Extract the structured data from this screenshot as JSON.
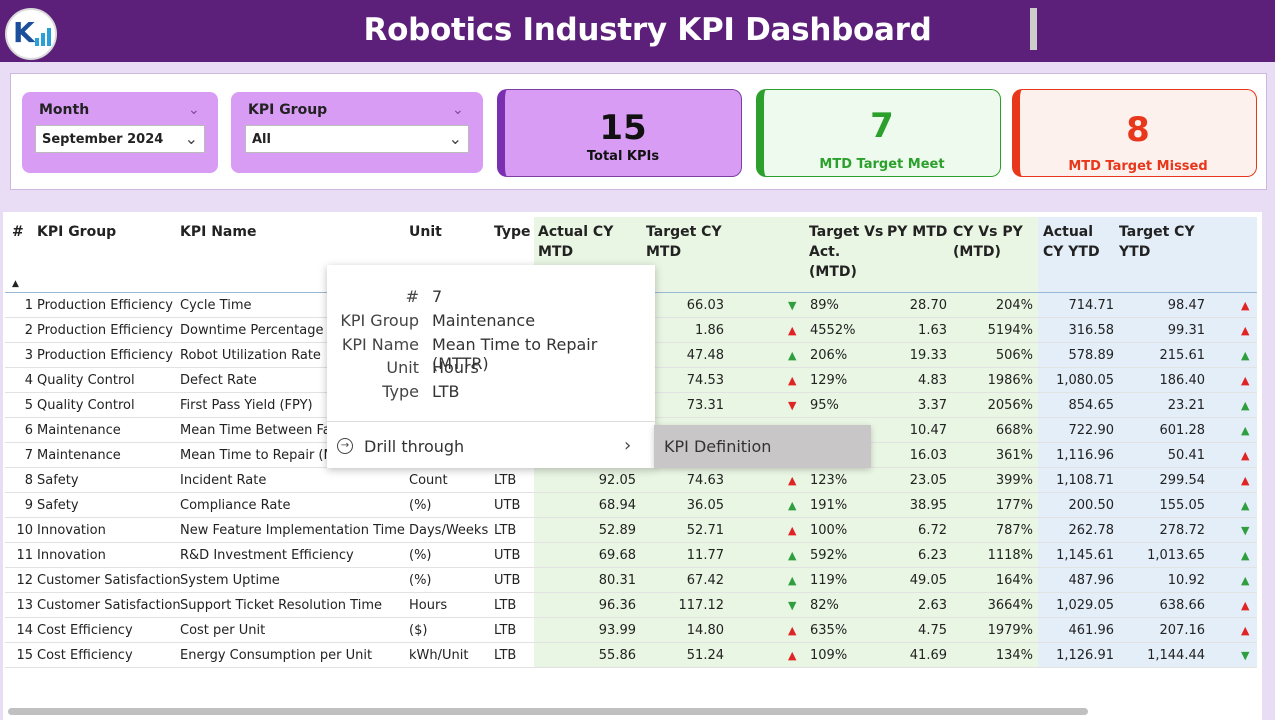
{
  "header": {
    "title": "Robotics Industry KPI Dashboard",
    "logo_icon": "kpi-logo-icon"
  },
  "slicers": {
    "month": {
      "label": "Month",
      "value": "September 2024"
    },
    "kpi_group": {
      "label": "KPI Group",
      "value": "All"
    }
  },
  "cards": {
    "total": {
      "value": "15",
      "label": "Total KPIs",
      "color": "#5c1f7a"
    },
    "met": {
      "value": "7",
      "label": "MTD Target Meet",
      "color": "#2ca02c"
    },
    "missed": {
      "value": "8",
      "label": "MTD Target Missed",
      "color": "#e8371a"
    }
  },
  "table": {
    "headers": {
      "num": "#",
      "group": "KPI Group",
      "name": "KPI Name",
      "unit": "Unit",
      "type": "Type",
      "actual_mtd": "Actual CY MTD",
      "target_mtd": "Target CY MTD",
      "tva": "Target Vs Act. (MTD)",
      "py_mtd": "PY MTD",
      "cy_vs_py": "CY Vs PY (MTD)",
      "actual_ytd": "Actual CY YTD",
      "target_ytd": "Target CY YTD"
    },
    "rows": [
      {
        "n": "1",
        "group": "Production Efficiency",
        "name": "Cycle Time",
        "unit": "",
        "type": "",
        "amtd": "",
        "tmtd": "66.03",
        "ind1": "down-green",
        "tva": "89%",
        "py": "28.70",
        "cvp": "204%",
        "aytd": "714.71",
        "tytd": "98.47",
        "ind2": "up-red"
      },
      {
        "n": "2",
        "group": "Production Efficiency",
        "name": "Downtime Percentage",
        "unit": "",
        "type": "",
        "amtd": "",
        "tmtd": "1.86",
        "ind1": "up-red",
        "tva": "4552%",
        "py": "1.63",
        "cvp": "5194%",
        "aytd": "316.58",
        "tytd": "99.31",
        "ind2": "up-red"
      },
      {
        "n": "3",
        "group": "Production Efficiency",
        "name": "Robot Utilization Rate",
        "unit": "",
        "type": "",
        "amtd": "",
        "tmtd": "47.48",
        "ind1": "up-green",
        "tva": "206%",
        "py": "19.33",
        "cvp": "506%",
        "aytd": "578.89",
        "tytd": "215.61",
        "ind2": "up-green"
      },
      {
        "n": "4",
        "group": "Quality Control",
        "name": "Defect Rate",
        "unit": "",
        "type": "",
        "amtd": "",
        "tmtd": "74.53",
        "ind1": "up-red",
        "tva": "129%",
        "py": "4.83",
        "cvp": "1986%",
        "aytd": "1,080.05",
        "tytd": "186.40",
        "ind2": "up-red"
      },
      {
        "n": "5",
        "group": "Quality Control",
        "name": "First Pass Yield (FPY)",
        "unit": "",
        "type": "",
        "amtd": "",
        "tmtd": "73.31",
        "ind1": "down-red",
        "tva": "95%",
        "py": "3.37",
        "cvp": "2056%",
        "aytd": "854.65",
        "tytd": "23.21",
        "ind2": "up-green"
      },
      {
        "n": "6",
        "group": "Maintenance",
        "name": "Mean Time Between Fail",
        "unit": "",
        "type": "",
        "amtd": "",
        "tmtd": "",
        "ind1": "",
        "tva": "",
        "py": "10.47",
        "cvp": "668%",
        "aytd": "722.90",
        "tytd": "601.28",
        "ind2": "up-green"
      },
      {
        "n": "7",
        "group": "Maintenance",
        "name": "Mean Time to Repair (M",
        "unit": "",
        "type": "",
        "amtd": "",
        "tmtd": "",
        "ind1": "",
        "tva": "",
        "py": "16.03",
        "cvp": "361%",
        "aytd": "1,116.96",
        "tytd": "50.41",
        "ind2": "up-red"
      },
      {
        "n": "8",
        "group": "Safety",
        "name": "Incident Rate",
        "unit": "Count",
        "type": "LTB",
        "amtd": "92.05",
        "tmtd": "74.63",
        "ind1": "up-red",
        "tva": "123%",
        "py": "23.05",
        "cvp": "399%",
        "aytd": "1,108.71",
        "tytd": "299.54",
        "ind2": "up-red"
      },
      {
        "n": "9",
        "group": "Safety",
        "name": "Compliance Rate",
        "unit": "(%)",
        "type": "UTB",
        "amtd": "68.94",
        "tmtd": "36.05",
        "ind1": "up-green",
        "tva": "191%",
        "py": "38.95",
        "cvp": "177%",
        "aytd": "200.50",
        "tytd": "155.05",
        "ind2": "up-green"
      },
      {
        "n": "10",
        "group": "Innovation",
        "name": "New Feature Implementation Time",
        "unit": "Days/Weeks",
        "type": "LTB",
        "amtd": "52.89",
        "tmtd": "52.71",
        "ind1": "up-red",
        "tva": "100%",
        "py": "6.72",
        "cvp": "787%",
        "aytd": "262.78",
        "tytd": "278.72",
        "ind2": "down-green"
      },
      {
        "n": "11",
        "group": "Innovation",
        "name": "R&D Investment Efficiency",
        "unit": "(%)",
        "type": "UTB",
        "amtd": "69.68",
        "tmtd": "11.77",
        "ind1": "up-green",
        "tva": "592%",
        "py": "6.23",
        "cvp": "1118%",
        "aytd": "1,145.61",
        "tytd": "1,013.65",
        "ind2": "up-green"
      },
      {
        "n": "12",
        "group": "Customer Satisfaction",
        "name": "System Uptime",
        "unit": "(%)",
        "type": "UTB",
        "amtd": "80.31",
        "tmtd": "67.42",
        "ind1": "up-green",
        "tva": "119%",
        "py": "49.05",
        "cvp": "164%",
        "aytd": "487.96",
        "tytd": "10.92",
        "ind2": "up-green"
      },
      {
        "n": "13",
        "group": "Customer Satisfaction",
        "name": "Support Ticket Resolution Time",
        "unit": "Hours",
        "type": "LTB",
        "amtd": "96.36",
        "tmtd": "117.12",
        "ind1": "down-green",
        "tva": "82%",
        "py": "2.63",
        "cvp": "3664%",
        "aytd": "1,029.05",
        "tytd": "638.66",
        "ind2": "up-red"
      },
      {
        "n": "14",
        "group": "Cost Efficiency",
        "name": "Cost per Unit",
        "unit": "($)",
        "type": "LTB",
        "amtd": "93.99",
        "tmtd": "14.80",
        "ind1": "up-red",
        "tva": "635%",
        "py": "4.75",
        "cvp": "1979%",
        "aytd": "461.96",
        "tytd": "207.16",
        "ind2": "up-red"
      },
      {
        "n": "15",
        "group": "Cost Efficiency",
        "name": "Energy Consumption per Unit",
        "unit": "kWh/Unit",
        "type": "LTB",
        "amtd": "55.86",
        "tmtd": "51.24",
        "ind1": "up-red",
        "tva": "109%",
        "py": "41.69",
        "cvp": "134%",
        "aytd": "1,126.91",
        "tytd": "1,144.44",
        "ind2": "down-green"
      }
    ]
  },
  "tooltip": {
    "fields": [
      {
        "key": "#",
        "value": "7"
      },
      {
        "key": "KPI Group",
        "value": "Maintenance"
      },
      {
        "key": "KPI Name",
        "value": "Mean Time to Repair (MTTR)"
      },
      {
        "key": "Unit",
        "value": "Hours"
      },
      {
        "key": "Type",
        "value": "LTB"
      }
    ],
    "drill_label": "Drill through",
    "submenu_label": "KPI Definition"
  },
  "colors": {
    "header_bg": "#5c1f7a",
    "slicer_bg": "#d89cf5",
    "up_green": "#2e9e3e",
    "red": "#e02424",
    "mtd_band": "#eaf6e4",
    "ytd_band": "#e4eef9"
  }
}
